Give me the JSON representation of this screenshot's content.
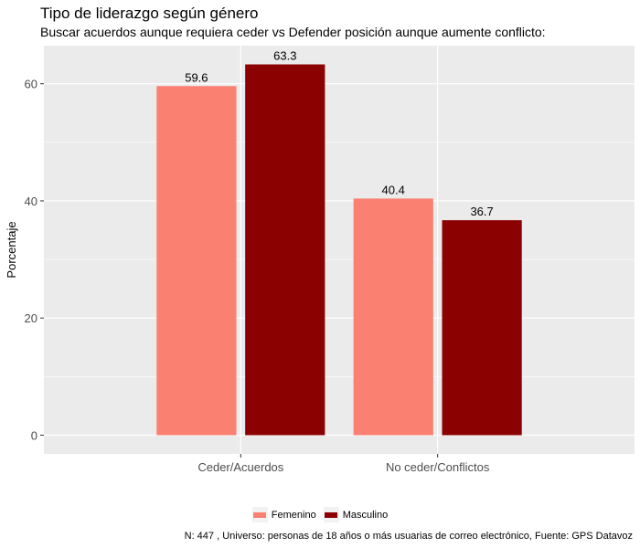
{
  "chart_data": {
    "type": "bar",
    "title": "Tipo de liderazgo según género",
    "subtitle": "Buscar acuerdos aunque requiera ceder vs Defender posición aunque aumente conflicto:",
    "xlabel": "",
    "ylabel": "Porcentaje",
    "categories": [
      "Ceder/Acuerdos",
      "No ceder/Conflictos"
    ],
    "series": [
      {
        "name": "Femenino",
        "values": [
          59.6,
          40.4
        ],
        "labels": [
          "59.6",
          "40.4"
        ],
        "color": "#fa8072"
      },
      {
        "name": "Masculino",
        "values": [
          63.3,
          36.7
        ],
        "labels": [
          "63.3",
          "36.7"
        ],
        "color": "#8b0000"
      }
    ],
    "y_ticks": [
      0,
      20,
      40,
      60
    ],
    "ylim": [
      -3.2,
      66.5
    ],
    "grid": true,
    "panel_background": "#ebebeb",
    "legend_position": "bottom",
    "caption": "N: 447 , Universo: personas de 18 años o más usuarias de correo electrónico, Fuente: GPS Datavoz"
  }
}
